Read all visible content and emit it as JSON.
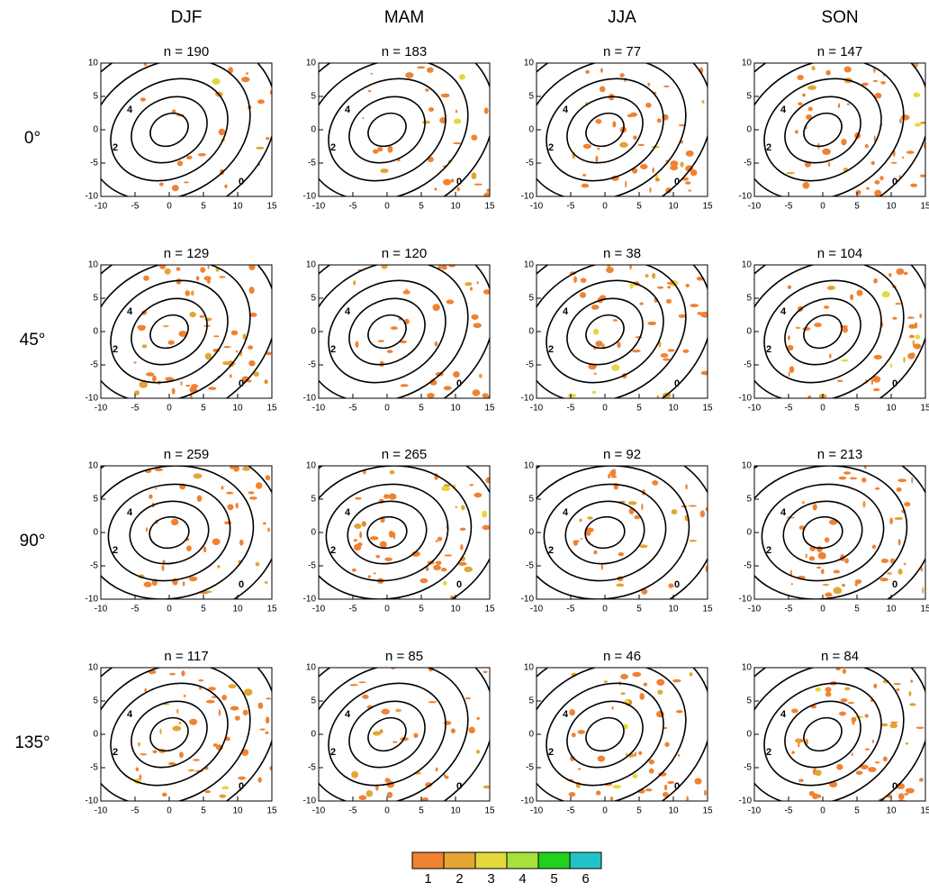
{
  "columns": [
    "DJF",
    "MAM",
    "JJA",
    "SON"
  ],
  "rows": [
    "0°",
    "45°",
    "90°",
    "135°"
  ],
  "panels": [
    [
      "n = 190",
      "n = 183",
      "n = 77",
      "n = 147"
    ],
    [
      "n = 129",
      "n = 120",
      "n = 38",
      "n = 104"
    ],
    [
      "n = 259",
      "n = 265",
      "n = 92",
      "n = 213"
    ],
    [
      "n = 117",
      "n = 85",
      "n = 46",
      "n = 84"
    ]
  ],
  "axes": {
    "xlim": [
      -10,
      15
    ],
    "ylim": [
      -10,
      10
    ],
    "xticks": [
      -10,
      -5,
      0,
      5,
      10,
      15
    ],
    "yticks": [
      -10,
      -5,
      0,
      5,
      10
    ]
  },
  "contour_labels": [
    0,
    2,
    4
  ],
  "colorbar": {
    "labels": [
      1,
      2,
      3,
      4,
      5,
      6
    ],
    "colors": [
      "#f08232",
      "#e3a533",
      "#e3d83c",
      "#a8e03c",
      "#22d11e",
      "#22c3c8"
    ]
  }
}
